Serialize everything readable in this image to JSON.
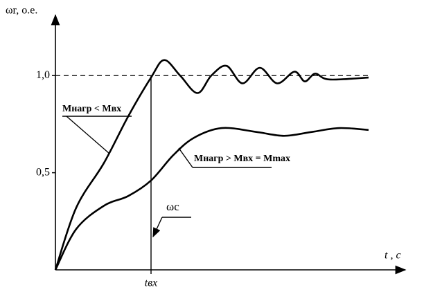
{
  "chart_data": {
    "type": "line",
    "y_label": "ωr, o.e.",
    "x_label": "t , c",
    "xlim": [
      0,
      10
    ],
    "ylim": [
      0,
      1.3
    ],
    "xticks": [
      {
        "value": 2.76,
        "label": "tвх"
      }
    ],
    "yticks": [
      {
        "value": 0.5,
        "label": "0,5"
      },
      {
        "value": 1.0,
        "label": "1,0"
      }
    ],
    "reference_line": 1.0,
    "series": [
      {
        "name": "Mнагр < Mвх",
        "color": "#000000",
        "x": [
          0,
          0.6,
          1.4,
          2.1,
          2.76,
          3.14,
          3.6,
          4.1,
          4.5,
          4.94,
          5.4,
          5.9,
          6.4,
          6.9,
          7.2,
          7.5,
          7.9,
          9.04
        ],
        "values": [
          0,
          0.32,
          0.55,
          0.79,
          0.99,
          1.08,
          1.0,
          0.91,
          1.0,
          1.05,
          0.96,
          1.04,
          0.96,
          1.02,
          0.97,
          1.01,
          0.98,
          0.99
        ]
      },
      {
        "name": "Mнагр > Mвх = Mmax",
        "color": "#000000",
        "x": [
          0,
          0.6,
          1.4,
          2.1,
          2.76,
          3.4,
          4.0,
          4.8,
          5.8,
          6.6,
          7.4,
          8.2,
          9.04
        ],
        "values": [
          0,
          0.21,
          0.33,
          0.38,
          0.46,
          0.59,
          0.68,
          0.73,
          0.71,
          0.69,
          0.71,
          0.73,
          0.72
        ]
      }
    ],
    "annotation": "ωc"
  }
}
